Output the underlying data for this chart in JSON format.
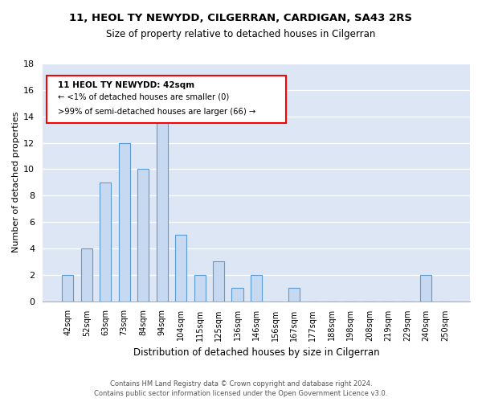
{
  "title_line1": "11, HEOL TY NEWYDD, CILGERRAN, CARDIGAN, SA43 2RS",
  "title_line2": "Size of property relative to detached houses in Cilgerran",
  "xlabel": "Distribution of detached houses by size in Cilgerran",
  "ylabel": "Number of detached properties",
  "bar_labels": [
    "42sqm",
    "52sqm",
    "63sqm",
    "73sqm",
    "84sqm",
    "94sqm",
    "104sqm",
    "115sqm",
    "125sqm",
    "136sqm",
    "146sqm",
    "156sqm",
    "167sqm",
    "177sqm",
    "188sqm",
    "198sqm",
    "208sqm",
    "219sqm",
    "229sqm",
    "240sqm",
    "250sqm"
  ],
  "bar_values": [
    2,
    4,
    9,
    12,
    10,
    14,
    5,
    2,
    3,
    1,
    2,
    0,
    1,
    0,
    0,
    0,
    0,
    0,
    0,
    2,
    0
  ],
  "bar_color": "#c6d9f0",
  "bar_edge_color": "#5b9bd5",
  "ylim": [
    0,
    18
  ],
  "yticks": [
    0,
    2,
    4,
    6,
    8,
    10,
    12,
    14,
    16,
    18
  ],
  "ann_line1": "11 HEOL TY NEWYDD: 42sqm",
  "ann_line2": "← <1% of detached houses are smaller (0)",
  "ann_line3": ">99% of semi-detached houses are larger (66) →",
  "footer_line1": "Contains HM Land Registry data © Crown copyright and database right 2024.",
  "footer_line2": "Contains public sector information licensed under the Open Government Licence v3.0.",
  "background_color": "#ffffff",
  "grid_color": "#ffffff",
  "plot_bg_color": "#dce6f5"
}
